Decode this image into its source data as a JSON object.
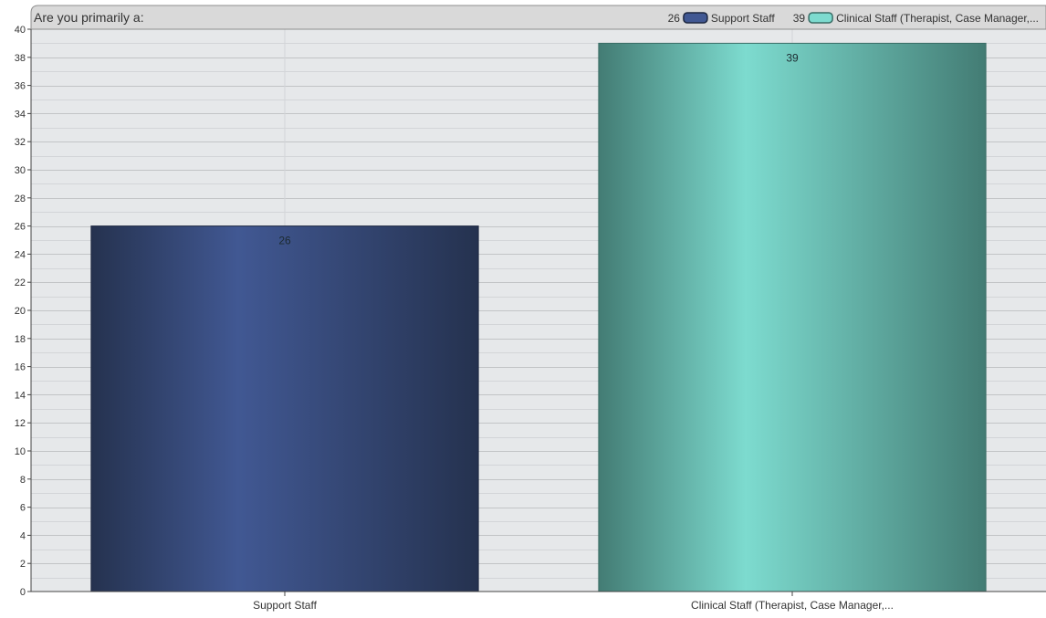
{
  "chart_data": {
    "type": "bar",
    "title": "Are you primarily a:",
    "categories": [
      "Support Staff",
      "Clinical Staff (Therapist, Case Manager,..."
    ],
    "values": [
      26,
      39
    ],
    "data_labels": [
      "26",
      "39"
    ],
    "ylim": [
      0,
      40
    ],
    "y_ticks": [
      "0",
      "2",
      "4",
      "6",
      "8",
      "10",
      "12",
      "14",
      "16",
      "18",
      "20",
      "22",
      "24",
      "26",
      "28",
      "30",
      "32",
      "34",
      "36",
      "38",
      "40"
    ],
    "xlabel": "",
    "ylabel": "",
    "grid": true,
    "legend_placement": "top-right",
    "legend": [
      {
        "count": "26",
        "label": "Support Staff"
      },
      {
        "count": "39",
        "label": "Clinical Staff (Therapist, Case Manager,..."
      }
    ],
    "colors": {
      "bar_1_dark": "#25324f",
      "bar_1_light": "#415893",
      "bar_2_dark": "#437c74",
      "bar_2_light": "#7ddbcf",
      "plot_bg": "#e6e8ea",
      "header_bg": "#d9d9d9",
      "grid_major": "#c2c4c6",
      "grid_minor": "#d3d5d8"
    }
  }
}
